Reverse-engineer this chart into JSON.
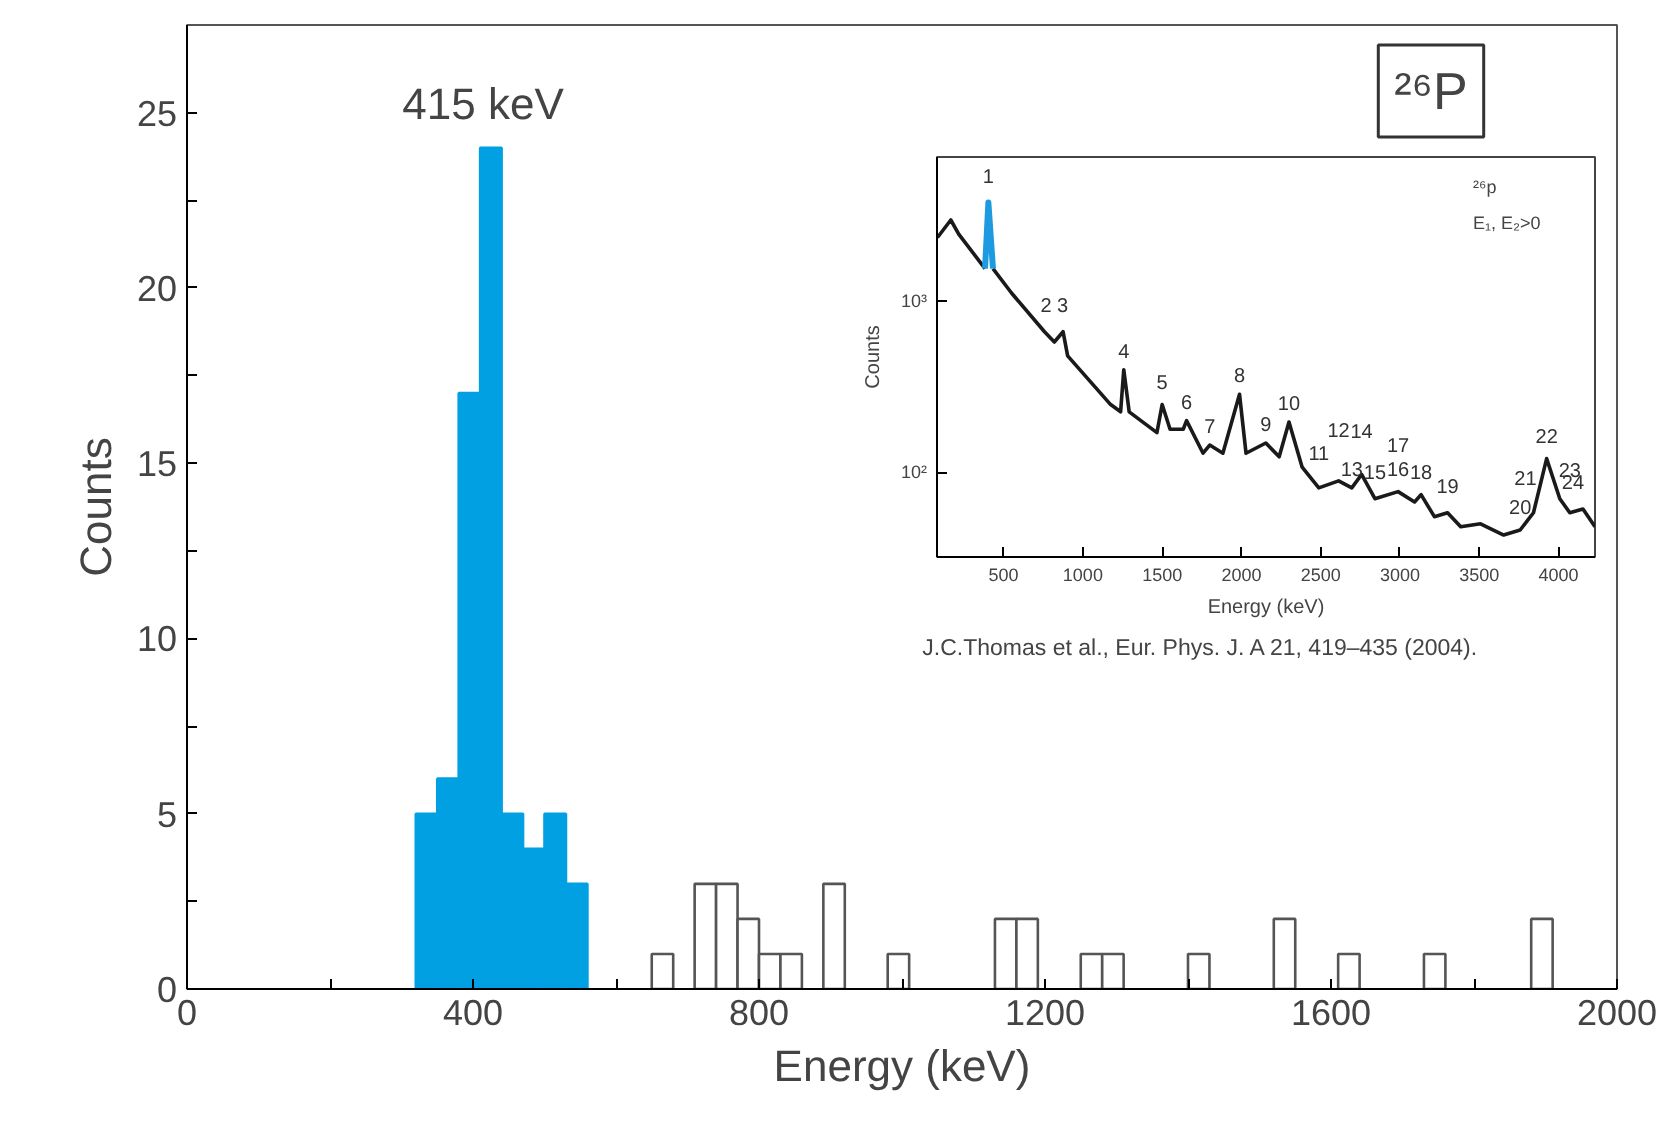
{
  "chart_data": [
    {
      "type": "histogram",
      "xlabel": "Energy (keV)",
      "ylabel": "Counts",
      "xlim": [
        0,
        2000
      ],
      "ylim": [
        0,
        27.5
      ],
      "xticks": [
        0,
        {
          "value": 200,
          "label": null
        },
        400,
        {
          "value": 600,
          "label": null
        },
        800,
        {
          "value": 1000,
          "label": null
        },
        1200,
        {
          "value": 1400,
          "label": null
        },
        1600,
        {
          "value": 1800,
          "label": null
        },
        2000
      ],
      "yticks": [
        0,
        {
          "value": 2.5,
          "label": null
        },
        5,
        {
          "value": 7.5,
          "label": null
        },
        10,
        {
          "value": 12.5,
          "label": null
        },
        15,
        {
          "value": 17.5,
          "label": null
        },
        20,
        {
          "value": 22.5,
          "label": null
        },
        25
      ],
      "grid": false,
      "bins": [
        320,
        350,
        380,
        410,
        440,
        470,
        500,
        530,
        560,
        590,
        620,
        650,
        680,
        710,
        740,
        770,
        800,
        830,
        860,
        890,
        920,
        950,
        980,
        1010,
        1040,
        1070,
        1100,
        1130,
        1160,
        1190,
        1220,
        1250,
        1280,
        1310,
        1340,
        1370,
        1400,
        1430,
        1460,
        1490,
        1520,
        1550,
        1580,
        1610,
        1640,
        1670,
        1700,
        1730,
        1760,
        1790,
        1820,
        1850,
        1880,
        1910
      ],
      "values": [
        5,
        6,
        17,
        24,
        5,
        4,
        5,
        3,
        0,
        0,
        0,
        1,
        0,
        3,
        3,
        2,
        1,
        1,
        0,
        3,
        0,
        0,
        1,
        0,
        0,
        0,
        0,
        2,
        2,
        0,
        0,
        1,
        1,
        0,
        0,
        0,
        1,
        0,
        0,
        0,
        2,
        0,
        0,
        1,
        0,
        0,
        0,
        1,
        0,
        0,
        0,
        0,
        2
      ],
      "colors": [
        "#00a0e3",
        "#00a0e3",
        "#00a0e3",
        "#00a0e3",
        "#00a0e3",
        "#00a0e3",
        "#00a0e3",
        "#00a0e3",
        "#ffffff",
        "#ffffff",
        "#ffffff",
        "#ffffff",
        "#ffffff",
        "#ffffff",
        "#ffffff",
        "#ffffff",
        "#ffffff",
        "#ffffff",
        "#ffffff",
        "#ffffff",
        "#ffffff",
        "#ffffff",
        "#ffffff",
        "#ffffff",
        "#ffffff",
        "#ffffff",
        "#ffffff",
        "#ffffff",
        "#ffffff",
        "#ffffff",
        "#ffffff",
        "#ffffff",
        "#ffffff",
        "#ffffff",
        "#ffffff",
        "#ffffff",
        "#ffffff",
        "#ffffff",
        "#ffffff",
        "#ffffff",
        "#ffffff",
        "#ffffff",
        "#ffffff",
        "#ffffff",
        "#ffffff",
        "#ffffff",
        "#ffffff",
        "#ffffff",
        "#ffffff",
        "#ffffff",
        "#ffffff",
        "#ffffff",
        "#ffffff"
      ],
      "annotations": [
        "415 keV",
        "²⁶P",
        "J.C.Thomas et al., Eur. Phys. J. A 21, 419–435 (2004)."
      ]
    },
    {
      "type": "line",
      "xlabel": "Energy (keV)",
      "ylabel": "Counts",
      "log": "y",
      "xlim": [
        80,
        4230
      ],
      "ylim": [
        32,
        6900
      ],
      "xticks": [
        500,
        1000,
        1500,
        2000,
        2500,
        3000,
        3500,
        4000
      ],
      "yticks": [
        {
          "value": 100,
          "label": "10²"
        },
        {
          "value": 1000,
          "label": "10³"
        }
      ],
      "grid": false,
      "series": [
        {
          "color": "#1a1a1a",
          "x": [
            83,
            167,
            217,
            383,
            404,
            433,
            550,
            758,
            820,
            875,
            904,
            1175,
            1238,
            1258,
            1292,
            1467,
            1500,
            1550,
            1633,
            1654,
            1758,
            1800,
            1883,
            1988,
            2029,
            2154,
            2238,
            2300,
            2383,
            2488,
            2613,
            2696,
            2758,
            2842,
            2988,
            3092,
            3133,
            3217,
            3300,
            3383,
            3508,
            3654,
            3758,
            3842,
            3925,
            4008,
            4071,
            4154,
            4230
          ],
          "values": [
            2340,
            2960,
            2450,
            1540,
            null,
            1540,
            1110,
            660,
            575,
            660,
            477,
            248,
            225,
            396,
            225,
            170,
            248,
            178,
            178,
            200,
            129,
            144,
            129,
            285,
            129,
            148,
            123,
            196,
            107,
            81,
            89,
            81,
            97,
            70,
            77,
            67,
            74,
            55,
            58,
            48,
            50,
            43,
            46,
            58,
            120,
            70,
            58,
            61,
            48
          ]
        },
        {
          "color": "#1e9be0",
          "x": [
            383,
            404,
            433
          ],
          "values": [
            1540,
            3740,
            1540
          ]
        }
      ],
      "annotations": [
        "²⁶p",
        "E₁, E₂>0",
        {
          "text": "1",
          "x": 404,
          "y": 3740
        },
        {
          "text": "2 3",
          "x": 820,
          "y": 575
        },
        {
          "text": "4",
          "x": 1258,
          "y": 396
        },
        {
          "text": "5",
          "x": 1500,
          "y": 248
        },
        {
          "text": "6",
          "x": 1654,
          "y": 200
        },
        {
          "text": "7",
          "x": 1800,
          "y": 144
        },
        {
          "text": "8",
          "x": 1988,
          "y": 285
        },
        {
          "text": "9",
          "x": 2154,
          "y": 148
        },
        {
          "text": "10",
          "x": 2300,
          "y": 196
        },
        {
          "text": "11",
          "x": 2488,
          "y": 81
        },
        {
          "text": "12",
          "x": 2613,
          "y": 89
        },
        {
          "text": "13",
          "x": 2696,
          "y": 81
        },
        {
          "text": "14",
          "x": 2758,
          "y": 97
        },
        {
          "text": "15",
          "x": 2842,
          "y": 70
        },
        {
          "text": "16",
          "x": 2988,
          "y": 77
        },
        {
          "text": "17",
          "x": 2988,
          "y": 77
        },
        {
          "text": "18",
          "x": 3133,
          "y": 74
        },
        {
          "text": "19",
          "x": 3300,
          "y": 58
        },
        {
          "text": "20",
          "x": 3758,
          "y": 46
        },
        {
          "text": "21",
          "x": 3842,
          "y": 58
        },
        {
          "text": "22",
          "x": 3925,
          "y": 120
        },
        {
          "text": "23",
          "x": 4071,
          "y": 58
        },
        {
          "text": "24",
          "x": 4154,
          "y": 61
        }
      ]
    }
  ]
}
